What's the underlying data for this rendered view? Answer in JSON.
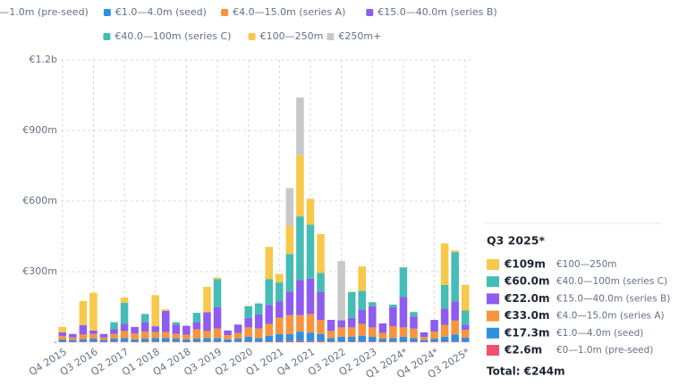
{
  "chart_data": {
    "type": "stacked-bar",
    "categories": [
      "Q4 2015",
      null,
      null,
      "Q3 2016",
      null,
      null,
      "Q2 2017",
      null,
      null,
      "Q1 2018",
      null,
      null,
      "Q4 2018",
      null,
      null,
      "Q3 2019",
      null,
      null,
      "Q2 2020",
      null,
      null,
      "Q1 2021",
      null,
      null,
      "Q4 2021",
      null,
      null,
      "Q3 2022",
      null,
      null,
      "Q2 2023",
      null,
      null,
      "Q1 2024*",
      null,
      null,
      "Q4 2024*",
      null,
      null,
      "Q3 2025*"
    ],
    "series": [
      {
        "name": "€0—1.0m (pre-seed)",
        "color": "#f0506e",
        "values": [
          2,
          2,
          3,
          3,
          2,
          3,
          3,
          2,
          3,
          3,
          3,
          3,
          2,
          3,
          3,
          3,
          2,
          3,
          3,
          3,
          3,
          4,
          5,
          5,
          5,
          5,
          3,
          3,
          3,
          3,
          3,
          3,
          3,
          3,
          3,
          2,
          3,
          3,
          3,
          2.6
        ]
      },
      {
        "name": "€1.0—4.0m (seed)",
        "color": "#2f8fe0",
        "values": [
          10,
          8,
          10,
          12,
          8,
          12,
          15,
          10,
          12,
          15,
          15,
          12,
          10,
          12,
          15,
          15,
          10,
          12,
          20,
          15,
          25,
          30,
          30,
          40,
          35,
          30,
          15,
          20,
          20,
          25,
          20,
          12,
          15,
          20,
          15,
          8,
          12,
          20,
          30,
          17.3
        ]
      },
      {
        "name": "€4.0—15.0m (series A)",
        "color": "#f7943c",
        "values": [
          15,
          10,
          20,
          20,
          10,
          20,
          30,
          25,
          30,
          25,
          25,
          20,
          20,
          40,
          30,
          40,
          18,
          25,
          40,
          40,
          50,
          70,
          80,
          70,
          80,
          60,
          30,
          40,
          40,
          50,
          40,
          25,
          50,
          40,
          40,
          12,
          30,
          50,
          60,
          33
        ]
      },
      {
        "name": "€15.0—40.0m (series B)",
        "color": "#8e5cf0",
        "values": [
          15,
          15,
          40,
          15,
          15,
          20,
          30,
          28,
          40,
          25,
          90,
          40,
          38,
          30,
          80,
          90,
          20,
          35,
          40,
          60,
          80,
          70,
          100,
          150,
          150,
          120,
          47,
          30,
          40,
          60,
          90,
          40,
          80,
          130,
          50,
          20,
          50,
          70,
          80,
          22
        ]
      },
      {
        "name": "€40.0—100m (series C)",
        "color": "#45bcb6",
        "values": [
          0,
          0,
          0,
          0,
          0,
          30,
          90,
          0,
          35,
          0,
          0,
          10,
          0,
          40,
          0,
          120,
          0,
          0,
          50,
          47,
          110,
          80,
          160,
          270,
          230,
          80,
          0,
          0,
          110,
          80,
          17,
          0,
          12,
          125,
          20,
          0,
          0,
          100,
          210,
          60
        ]
      },
      {
        "name": "€100—250m",
        "color": "#f7c84a",
        "values": [
          23,
          0,
          102,
          160,
          0,
          0,
          22,
          0,
          0,
          132,
          7,
          0,
          0,
          0,
          107,
          7,
          0,
          0,
          2,
          0,
          137,
          36,
          120,
          260,
          110,
          165,
          0,
          0,
          2,
          104,
          0,
          0,
          0,
          2,
          2,
          0,
          0,
          177,
          7,
          109
        ]
      },
      {
        "name": "€250m+",
        "color": "#c8c8c8",
        "values": [
          0,
          0,
          0,
          0,
          0,
          0,
          0,
          0,
          0,
          0,
          0,
          0,
          0,
          0,
          0,
          0,
          0,
          0,
          0,
          0,
          0,
          0,
          160,
          245,
          0,
          0,
          0,
          252,
          0,
          0,
          0,
          0,
          0,
          0,
          0,
          0,
          0,
          0,
          0,
          0
        ]
      }
    ],
    "ylim": [
      0,
      1200
    ],
    "yticks": [
      {
        "value": 0,
        "label": "-"
      },
      {
        "value": 300,
        "label": "€300m"
      },
      {
        "value": 600,
        "label": "€600m"
      },
      {
        "value": 900,
        "label": "€900m"
      },
      {
        "value": 1200,
        "label": "€1.2b"
      }
    ],
    "grid": true,
    "tooltip": {
      "title": "Q3 2025*",
      "rows": [
        {
          "value": "€109m",
          "name": "€100—250m"
        },
        {
          "value": "€60.0m",
          "name": "€40.0—100m (series C)"
        },
        {
          "value": "€22.0m",
          "name": "€15.0—40.0m (series B)"
        },
        {
          "value": "€33.0m",
          "name": "€4.0—15.0m (series A)"
        },
        {
          "value": "€17.3m",
          "name": "€1.0—4.0m (seed)"
        },
        {
          "value": "€2.6m",
          "name": "€0—1.0m (pre-seed)"
        }
      ],
      "total": "Total: €244m"
    }
  }
}
